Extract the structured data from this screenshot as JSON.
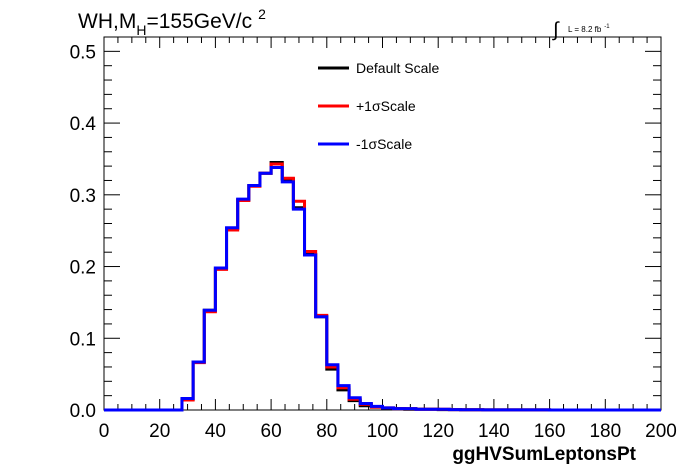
{
  "header": {
    "title_main": "WH,M",
    "title_sub": "H",
    "title_rest": "=155GeV/c",
    "title_sup": "2",
    "lumi_prefix": "∫",
    "lumi_text": "L = 8.2 fb",
    "lumi_sup": "-1"
  },
  "chart_data": {
    "type": "line",
    "style": "step-histogram",
    "title": "WH,MH=155GeV/c2",
    "xlabel": "ggHVSumLeptonsPt",
    "ylabel": "",
    "xlim": [
      0,
      200
    ],
    "ylim": [
      0,
      0.52
    ],
    "bin_width": 4,
    "x_ticks": [
      0,
      20,
      40,
      60,
      80,
      100,
      120,
      140,
      160,
      180,
      200
    ],
    "y_ticks": [
      0.0,
      0.1,
      0.2,
      0.3,
      0.4,
      0.5
    ],
    "x_tick_labels": [
      "0",
      "20",
      "40",
      "60",
      "80",
      "100",
      "120",
      "140",
      "160",
      "180",
      "200"
    ],
    "y_tick_labels": [
      "0.0",
      "0.1",
      "0.2",
      "0.3",
      "0.4",
      "0.5"
    ],
    "grid": false,
    "legend_position": "top-center",
    "series": [
      {
        "name": "Default Scale",
        "color": "#000000",
        "values": [
          0,
          0,
          0,
          0,
          0,
          0,
          0,
          0.015,
          0.067,
          0.139,
          0.198,
          0.253,
          0.293,
          0.313,
          0.33,
          0.345,
          0.322,
          0.282,
          0.217,
          0.13,
          0.057,
          0.028,
          0.013,
          0.006,
          0.004,
          0.002,
          0.002,
          0.001,
          0.001,
          0.001,
          0.0005,
          0.0005,
          0.0003,
          0.0003,
          0.0002,
          0.0002,
          0.0001,
          0.0001,
          0.0001,
          0.0001,
          0,
          0,
          0,
          0,
          0,
          0,
          0,
          0,
          0,
          0
        ]
      },
      {
        "name": "+1σScale",
        "color": "#ff0000",
        "values": [
          0,
          0,
          0,
          0,
          0,
          0,
          0,
          0.014,
          0.066,
          0.137,
          0.196,
          0.251,
          0.292,
          0.312,
          0.33,
          0.343,
          0.323,
          0.291,
          0.221,
          0.132,
          0.06,
          0.031,
          0.015,
          0.008,
          0.004,
          0.003,
          0.002,
          0.002,
          0.001,
          0.001,
          0.001,
          0.0005,
          0.0004,
          0.0003,
          0.0002,
          0.0002,
          0.0001,
          0.0001,
          0.0001,
          0.0001,
          0,
          0,
          0,
          0,
          0,
          0,
          0,
          0,
          0,
          0
        ]
      },
      {
        "name": "-1σScale",
        "color": "#0000ff",
        "values": [
          0,
          0,
          0,
          0,
          0,
          0,
          0,
          0.016,
          0.067,
          0.139,
          0.198,
          0.254,
          0.294,
          0.313,
          0.33,
          0.338,
          0.318,
          0.28,
          0.216,
          0.13,
          0.063,
          0.034,
          0.017,
          0.009,
          0.005,
          0.003,
          0.002,
          0.002,
          0.001,
          0.001,
          0.001,
          0.0005,
          0.0004,
          0.0003,
          0.0002,
          0.0002,
          0.0001,
          0.0001,
          0.0001,
          0.0001,
          0,
          0,
          0,
          0,
          0,
          0,
          0,
          0,
          0,
          0
        ]
      }
    ]
  }
}
